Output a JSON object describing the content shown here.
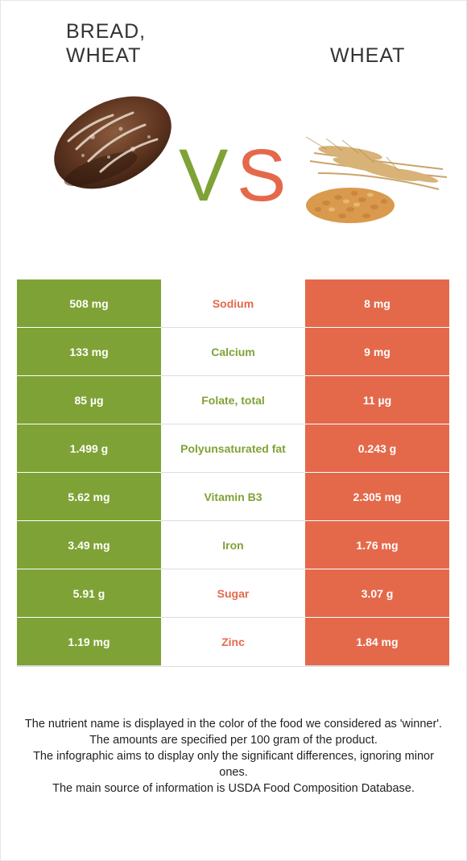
{
  "header": {
    "left_title": "BREAD, WHEAT",
    "right_title": "WHEAT",
    "vs_v": "V",
    "vs_s": "S"
  },
  "colors": {
    "left": "#7fa236",
    "right": "#e4694b"
  },
  "comparison": [
    {
      "nutrient": "Sodium",
      "left": "508 mg",
      "right": "8 mg",
      "winner": "right"
    },
    {
      "nutrient": "Calcium",
      "left": "133 mg",
      "right": "9 mg",
      "winner": "left"
    },
    {
      "nutrient": "Folate, total",
      "left": "85 µg",
      "right": "11 µg",
      "winner": "left"
    },
    {
      "nutrient": "Polyunsaturated fat",
      "left": "1.499 g",
      "right": "0.243 g",
      "winner": "left"
    },
    {
      "nutrient": "Vitamin B3",
      "left": "5.62 mg",
      "right": "2.305 mg",
      "winner": "left"
    },
    {
      "nutrient": "Iron",
      "left": "3.49 mg",
      "right": "1.76 mg",
      "winner": "left"
    },
    {
      "nutrient": "Sugar",
      "left": "5.91 g",
      "right": "3.07 g",
      "winner": "right"
    },
    {
      "nutrient": "Zinc",
      "left": "1.19 mg",
      "right": "1.84 mg",
      "winner": "right"
    }
  ],
  "notes": [
    "The nutrient name is displayed in the color of the food we considered as 'winner'.",
    "The amounts are specified per 100 gram of the product.",
    "The infographic aims to display only the significant differences, ignoring minor ones.",
    "The main source of information is USDA Food Composition Database."
  ]
}
